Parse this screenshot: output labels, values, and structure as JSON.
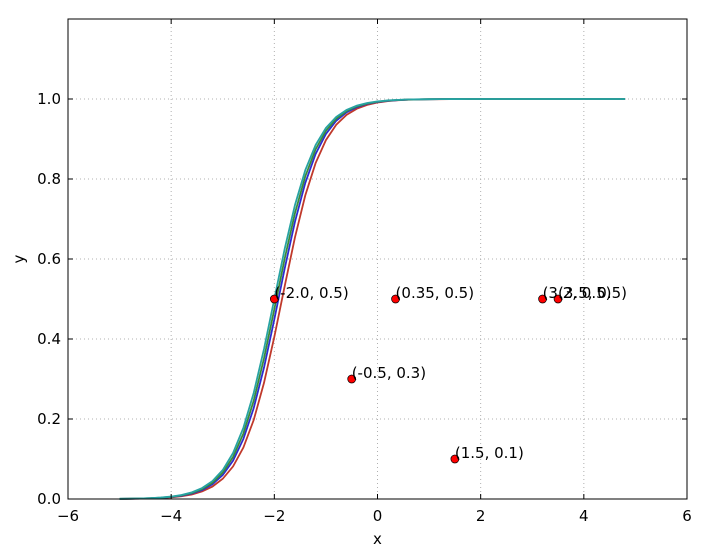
{
  "chart_data": {
    "type": "line",
    "xlabel": "x",
    "ylabel": "y",
    "xlim": [
      -6,
      6
    ],
    "ylim": [
      0,
      1.2
    ],
    "xticks": [
      "−6",
      "−4",
      "−2",
      "0",
      "2",
      "4",
      "6"
    ],
    "yticks": [
      "0.0",
      "0.2",
      "0.4",
      "0.6",
      "0.8",
      "1.0"
    ],
    "grid": true,
    "curves": {
      "x_start": -5.0,
      "x_end": 4.8,
      "step": 0.2,
      "midpoints": [
        -1.85,
        -1.92,
        -1.96,
        -2.0
      ],
      "slope": 2.55,
      "colors": [
        "#c0392b",
        "#2b2bd1",
        "#3a8a3a",
        "#27a3a3"
      ]
    },
    "points": [
      {
        "x": -2.0,
        "y": 0.5,
        "label": "(-2.0, 0.5)"
      },
      {
        "x": 0.35,
        "y": 0.5,
        "label": "(0.35, 0.5)"
      },
      {
        "x": 3.2,
        "y": 0.5,
        "label": "(3.2, 0.5)"
      },
      {
        "x": 3.5,
        "y": 0.5,
        "label": "(3.5, 0.5)"
      },
      {
        "x": -0.5,
        "y": 0.3,
        "label": "(-0.5, 0.3)"
      },
      {
        "x": 1.5,
        "y": 0.1,
        "label": "(1.5, 0.1)"
      }
    ],
    "point_color": "#ff0000"
  }
}
